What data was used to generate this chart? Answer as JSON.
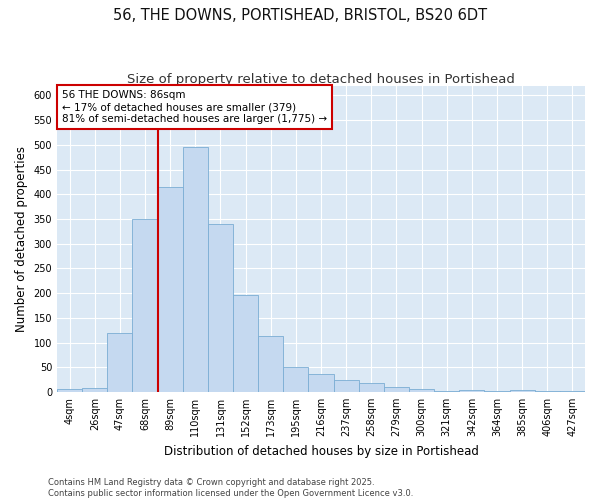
{
  "title_line1": "56, THE DOWNS, PORTISHEAD, BRISTOL, BS20 6DT",
  "title_line2": "Size of property relative to detached houses in Portishead",
  "xlabel": "Distribution of detached houses by size in Portishead",
  "ylabel": "Number of detached properties",
  "categories": [
    "4sqm",
    "26sqm",
    "47sqm",
    "68sqm",
    "89sqm",
    "110sqm",
    "131sqm",
    "152sqm",
    "173sqm",
    "195sqm",
    "216sqm",
    "237sqm",
    "258sqm",
    "279sqm",
    "300sqm",
    "321sqm",
    "342sqm",
    "364sqm",
    "385sqm",
    "406sqm",
    "427sqm"
  ],
  "values": [
    5,
    7,
    120,
    350,
    415,
    495,
    340,
    197,
    113,
    50,
    37,
    24,
    18,
    9,
    5,
    2,
    4,
    2,
    3,
    2,
    2
  ],
  "bar_color": "#c5d9f0",
  "bar_edge_color": "#7badd4",
  "vline_x": 4,
  "vline_color": "#cc0000",
  "annotation_text": "56 THE DOWNS: 86sqm\n← 17% of detached houses are smaller (379)\n81% of semi-detached houses are larger (1,775) →",
  "annotation_box_facecolor": "#ffffff",
  "annotation_box_edgecolor": "#cc0000",
  "ylim": [
    0,
    620
  ],
  "yticks": [
    0,
    50,
    100,
    150,
    200,
    250,
    300,
    350,
    400,
    450,
    500,
    550,
    600
  ],
  "plot_bg_color": "#dce9f5",
  "fig_bg_color": "#ffffff",
  "grid_color": "#ffffff",
  "title_fontsize": 10.5,
  "subtitle_fontsize": 9.5,
  "axis_label_fontsize": 8.5,
  "tick_fontsize": 7,
  "annotation_fontsize": 7.5,
  "footnote_fontsize": 6,
  "footnote": "Contains HM Land Registry data © Crown copyright and database right 2025.\nContains public sector information licensed under the Open Government Licence v3.0."
}
